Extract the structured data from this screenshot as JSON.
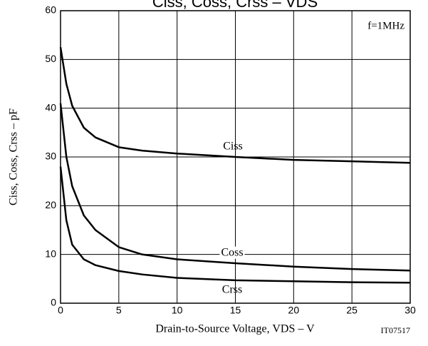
{
  "chart_data": {
    "type": "line",
    "title": "Ciss, Coss, Crss – VDS",
    "x_label": "Drain-to-Source Voltage, VDS – V",
    "y_label": "Ciss, Coss, Crss – pF",
    "annotations": [
      "f=1MHz",
      "IT07517"
    ],
    "x": [
      0,
      0.5,
      1,
      2,
      3,
      5,
      7,
      10,
      15,
      20,
      25,
      30
    ],
    "series": [
      {
        "name": "Ciss",
        "color": "#000000",
        "values": [
          52.5,
          45,
          40.5,
          36,
          34,
          32,
          31.3,
          30.7,
          30,
          29.4,
          29.1,
          28.8
        ]
      },
      {
        "name": "Coss",
        "color": "#000000",
        "values": [
          41,
          30,
          24,
          18,
          15,
          11.5,
          10,
          9,
          8.2,
          7.5,
          7,
          6.7
        ]
      },
      {
        "name": "Crss",
        "color": "#000000",
        "values": [
          28,
          17,
          12,
          9,
          7.8,
          6.6,
          5.9,
          5.2,
          4.7,
          4.5,
          4.3,
          4.2
        ]
      }
    ],
    "xlim": [
      0,
      30
    ],
    "ylim": [
      0,
      60
    ],
    "xticks": [
      0,
      5,
      10,
      15,
      20,
      25,
      30
    ],
    "yticks": [
      0,
      10,
      20,
      30,
      40,
      50,
      60
    ],
    "grid": true
  }
}
